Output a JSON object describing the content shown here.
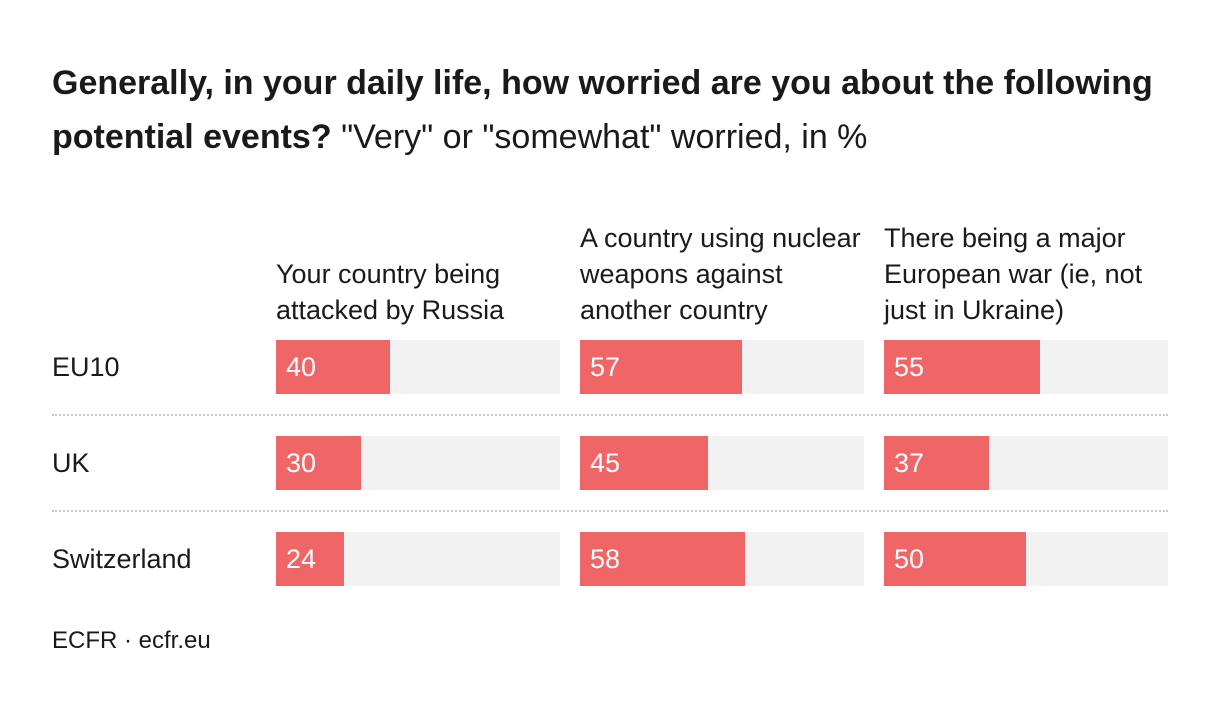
{
  "title": {
    "bold": "Generally, in your daily life, how worried are you about the following potential events?",
    "normal": "\"Very\" or \"somewhat\" worried, in %"
  },
  "source": "ECFR · ecfr.eu",
  "colors": {
    "bar": "#f06667",
    "track": "#f2f2f2",
    "value_text": "#ffffff"
  },
  "chart_data": {
    "type": "bar",
    "title": "Generally, in your daily life, how worried are you about the following potential events? \"Very\" or \"somewhat\" worried, in %",
    "xlim": [
      0,
      100
    ],
    "categories": [
      "EU10",
      "UK",
      "Switzerland"
    ],
    "series": [
      {
        "name": "Your country being attacked by Russia",
        "values": [
          40,
          30,
          24
        ]
      },
      {
        "name": "A country using nuclear weapons against another country",
        "values": [
          57,
          45,
          58
        ]
      },
      {
        "name": "There being a major European war (ie, not just in Ukraine)",
        "values": [
          55,
          37,
          50
        ]
      }
    ]
  }
}
